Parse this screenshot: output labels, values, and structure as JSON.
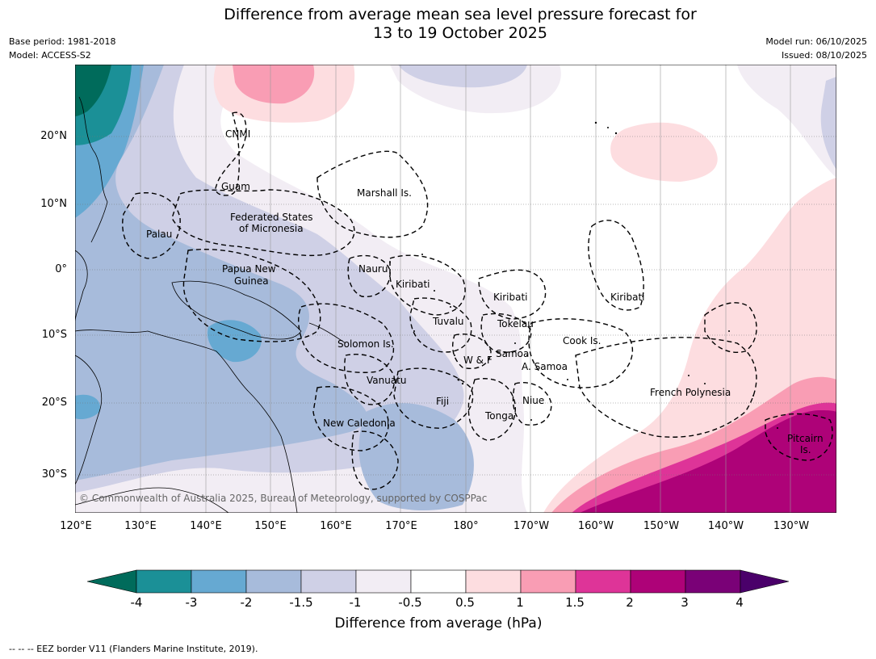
{
  "title": {
    "line1": "Difference from average mean sea level pressure forecast for",
    "line2": "13 to 19 October 2025"
  },
  "meta": {
    "base_period": "Base period: 1981-2018",
    "model": "Model: ACCESS-S2",
    "model_run": "Model run: 06/10/2025",
    "issued": "Issued: 08/10/2025"
  },
  "axes": {
    "lat_labels": [
      "20°N",
      "10°N",
      "0°",
      "10°S",
      "20°S",
      "30°S"
    ],
    "lon_labels": [
      "120°E",
      "130°E",
      "140°E",
      "150°E",
      "160°E",
      "170°E",
      "180°",
      "170°W",
      "160°W",
      "150°W",
      "140°W",
      "130°W"
    ]
  },
  "map": {
    "region": "Western and Central Pacific",
    "labels": {
      "cnmi": "CNMI",
      "guam": "Guam",
      "marshall": "Marshall Is.",
      "fsm1": "Federated States",
      "fsm2": "of Micronesia",
      "palau": "Palau",
      "png1": "Papua New",
      "png2": "Guinea",
      "nauru": "Nauru",
      "kiribati_w": "Kiribati",
      "kiribati_c": "Kiribati",
      "kiribati_e": "Kiribati",
      "tuvalu": "Tuvalu",
      "tokelau": "Tokelau",
      "cook": "Cook Is.",
      "solomon": "Solomon Is.",
      "samoa": "Samoa",
      "wf": "W & F",
      "asamoa": "A. Samoa",
      "vanuatu": "Vanuatu",
      "fiji": "Fiji",
      "niue": "Niue",
      "tonga": "Tonga",
      "newcal": "New Caledonia",
      "frenchpoly": "French Polynesia",
      "pitcairn1": "Pitcairn",
      "pitcairn2": "Is."
    },
    "copyright": "© Commonwealth of Australia 2025, Bureau of Meteorology, supported by COSPPac"
  },
  "colorbar": {
    "label": "Difference from average (hPa)",
    "ticks": [
      "-4",
      "-3",
      "-2",
      "-1.5",
      "-1",
      "-0.5",
      "0.5",
      "1",
      "1.5",
      "2",
      "3",
      "4"
    ],
    "colors": [
      "#006b5b",
      "#1b9097",
      "#66a9d2",
      "#a7bbdb",
      "#cfd0e6",
      "#f2edf4",
      "#ffffff",
      "#fddde0",
      "#f99db4",
      "#de3498",
      "#ae0278",
      "#7a0177",
      "#4a006a"
    ]
  },
  "footnote": "--  --  -- EEZ border V11 (Flanders Marine Institute, 2019)."
}
